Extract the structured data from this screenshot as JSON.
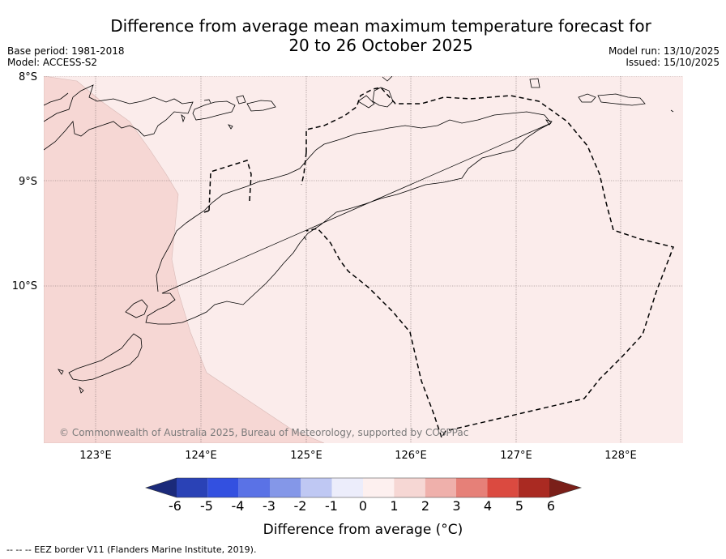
{
  "header": {
    "title_line1": "Difference from average mean maximum temperature forecast for",
    "title_line2": "20 to 26 October 2025",
    "base_period": "Base period: 1981-2018",
    "model": "Model: ACCESS-S2",
    "model_run": "Model run: 13/10/2025",
    "issued": "Issued: 15/10/2025"
  },
  "map": {
    "lat_labels": [
      "8°S",
      "9°S",
      "10°S"
    ],
    "lon_labels": [
      "123°E",
      "124°E",
      "125°E",
      "126°E",
      "127°E",
      "128°E"
    ],
    "copyright": "© Commonwealth of Australia 2025, Bureau of Meteorology, supported by COSPPac",
    "colors": {
      "anomaly_1_to_2": "#f6d7d4",
      "anomaly_0_to_1": "#fbeceb",
      "coast": "#000000",
      "eez": "#000000"
    }
  },
  "colorbar": {
    "ticks": [
      "-6",
      "-5",
      "-4",
      "-3",
      "-2",
      "-1",
      "0",
      "1",
      "2",
      "3",
      "4",
      "5",
      "6"
    ],
    "colors": [
      "#1b2a7a",
      "#2a42b6",
      "#3350e0",
      "#5a72e6",
      "#8497e8",
      "#bfc8f3",
      "#ecedfb",
      "#fdf0ef",
      "#f6d7d4",
      "#efb0ab",
      "#e68078",
      "#db4a40",
      "#aa2a22",
      "#7a1f19"
    ],
    "label": "Difference from average (°C)"
  },
  "footnote": "--  --  -- EEZ border V11 (Flanders Marine Institute, 2019)."
}
